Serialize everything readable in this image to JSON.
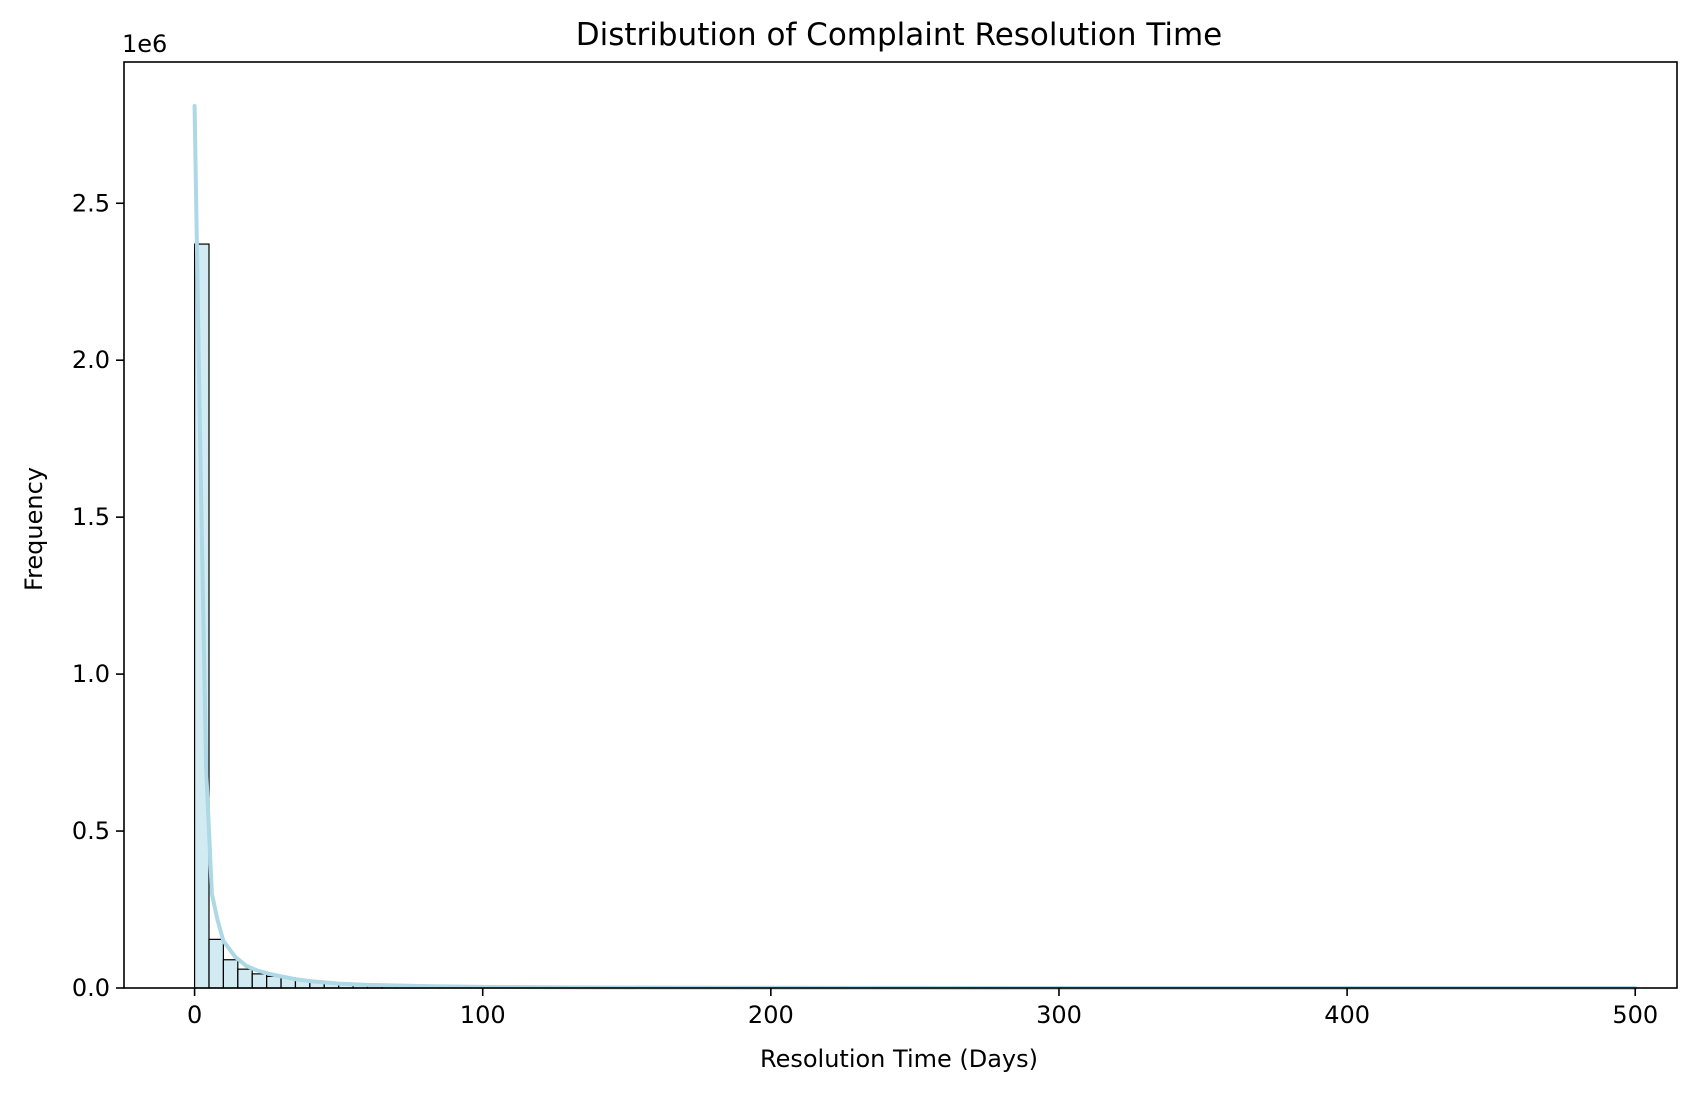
{
  "chart_data": {
    "type": "bar",
    "title": "Distribution of Complaint Resolution Time",
    "xlabel": "Resolution Time (Days)",
    "ylabel": "Frequency",
    "y_offset_label": "1e6",
    "xlim": [
      -24.5,
      514.5
    ],
    "ylim": [
      0,
      2950000
    ],
    "x_ticks": [
      0,
      100,
      200,
      300,
      400,
      500
    ],
    "x_tick_labels": [
      "0",
      "100",
      "200",
      "300",
      "400",
      "500"
    ],
    "y_ticks": [
      0,
      500000,
      1000000,
      1500000,
      2000000,
      2500000
    ],
    "y_tick_labels": [
      "0.0",
      "0.5",
      "1.0",
      "1.5",
      "2.0",
      "2.5"
    ],
    "grid": false,
    "bar_color": "#add8e6",
    "bar_edge_color": "#000000",
    "kde_color": "#add8e6",
    "bin_width": 5,
    "bins": [
      {
        "x0": 0,
        "x1": 5,
        "count": 2370000
      },
      {
        "x0": 5,
        "x1": 10,
        "count": 155000
      },
      {
        "x0": 10,
        "x1": 15,
        "count": 90000
      },
      {
        "x0": 15,
        "x1": 20,
        "count": 60000
      },
      {
        "x0": 20,
        "x1": 25,
        "count": 45000
      },
      {
        "x0": 25,
        "x1": 30,
        "count": 37000
      },
      {
        "x0": 30,
        "x1": 35,
        "count": 32000
      },
      {
        "x0": 35,
        "x1": 40,
        "count": 26000
      },
      {
        "x0": 40,
        "x1": 45,
        "count": 21000
      },
      {
        "x0": 45,
        "x1": 50,
        "count": 17000
      },
      {
        "x0": 50,
        "x1": 55,
        "count": 13000
      },
      {
        "x0": 55,
        "x1": 60,
        "count": 10000
      },
      {
        "x0": 60,
        "x1": 65,
        "count": 8000
      },
      {
        "x0": 65,
        "x1": 70,
        "count": 7000
      },
      {
        "x0": 70,
        "x1": 75,
        "count": 6000
      },
      {
        "x0": 75,
        "x1": 80,
        "count": 5000
      },
      {
        "x0": 80,
        "x1": 85,
        "count": 4000
      },
      {
        "x0": 85,
        "x1": 90,
        "count": 3500
      },
      {
        "x0": 90,
        "x1": 95,
        "count": 3000
      },
      {
        "x0": 95,
        "x1": 100,
        "count": 2500
      },
      {
        "x0": 100,
        "x1": 105,
        "count": 2000
      },
      {
        "x0": 105,
        "x1": 110,
        "count": 1800
      },
      {
        "x0": 110,
        "x1": 115,
        "count": 1500
      },
      {
        "x0": 115,
        "x1": 120,
        "count": 1300
      },
      {
        "x0": 120,
        "x1": 125,
        "count": 1100
      },
      {
        "x0": 125,
        "x1": 130,
        "count": 1000
      },
      {
        "x0": 130,
        "x1": 135,
        "count": 900
      },
      {
        "x0": 135,
        "x1": 140,
        "count": 800
      },
      {
        "x0": 140,
        "x1": 145,
        "count": 700
      },
      {
        "x0": 145,
        "x1": 150,
        "count": 600
      }
    ],
    "kde": {
      "x": [
        0,
        2,
        4,
        6,
        8,
        10,
        14,
        18,
        22,
        26,
        30,
        35,
        40,
        50,
        60,
        80,
        100,
        130,
        160,
        200,
        250,
        300,
        400,
        500
      ],
      "y": [
        2810000,
        1700000,
        700000,
        300000,
        215000,
        150000,
        100000,
        70000,
        55000,
        45000,
        37000,
        28000,
        22000,
        14000,
        10000,
        6000,
        3500,
        2000,
        1200,
        600,
        300,
        150,
        50,
        20
      ]
    }
  }
}
